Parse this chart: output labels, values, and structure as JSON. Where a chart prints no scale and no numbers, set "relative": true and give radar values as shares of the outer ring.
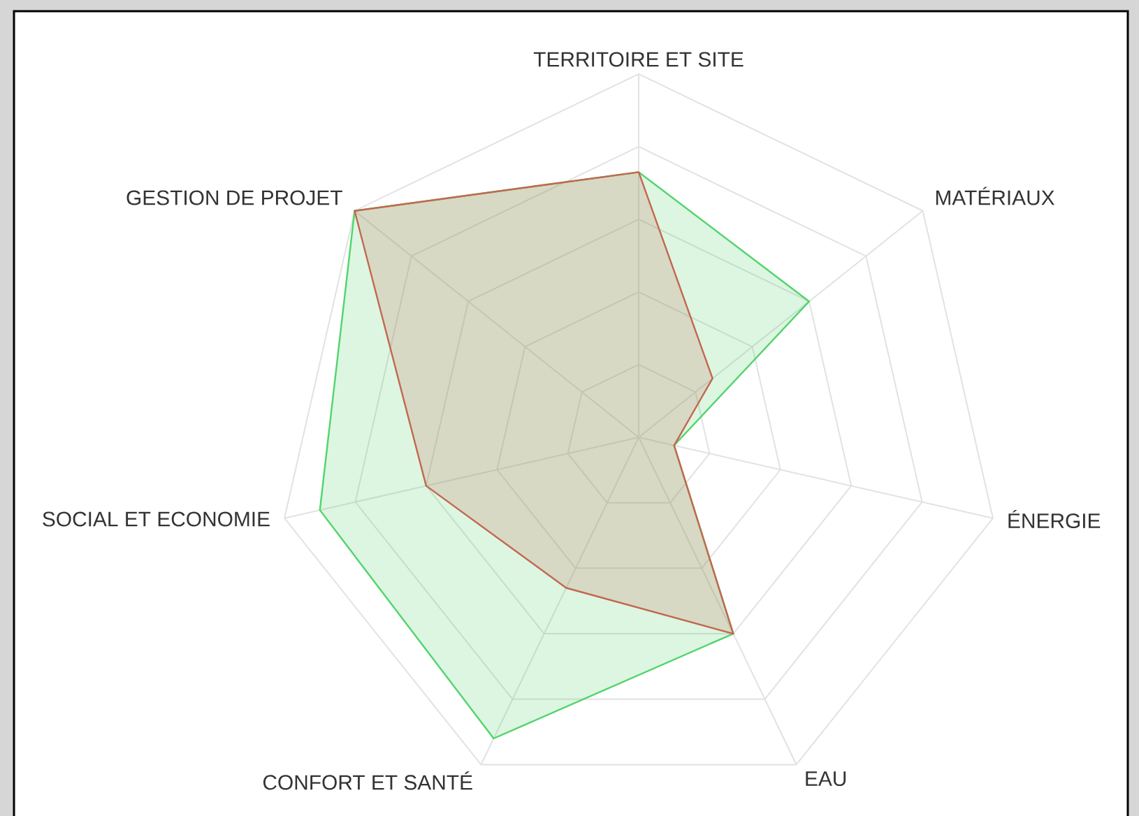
{
  "chart_data": {
    "type": "radar",
    "relative": true,
    "grid": true,
    "categories": [
      "TERRITOIRE ET SITE",
      "MATÉRIAUX",
      "ÉNERGIE",
      "EAU",
      "CONFORT ET SANTÉ",
      "SOCIAL ET ECONOMIE",
      "GESTION DE PROJET"
    ],
    "series": [
      {
        "color": "#52d46c",
        "values": [
          0.73,
          0.6,
          0.1,
          0.6,
          0.92,
          0.9,
          1
        ]
      },
      {
        "color": "#c4674f",
        "values": [
          0.73,
          0.26,
          0.1,
          0.6,
          0.46,
          0.6,
          1
        ]
      }
    ]
  }
}
